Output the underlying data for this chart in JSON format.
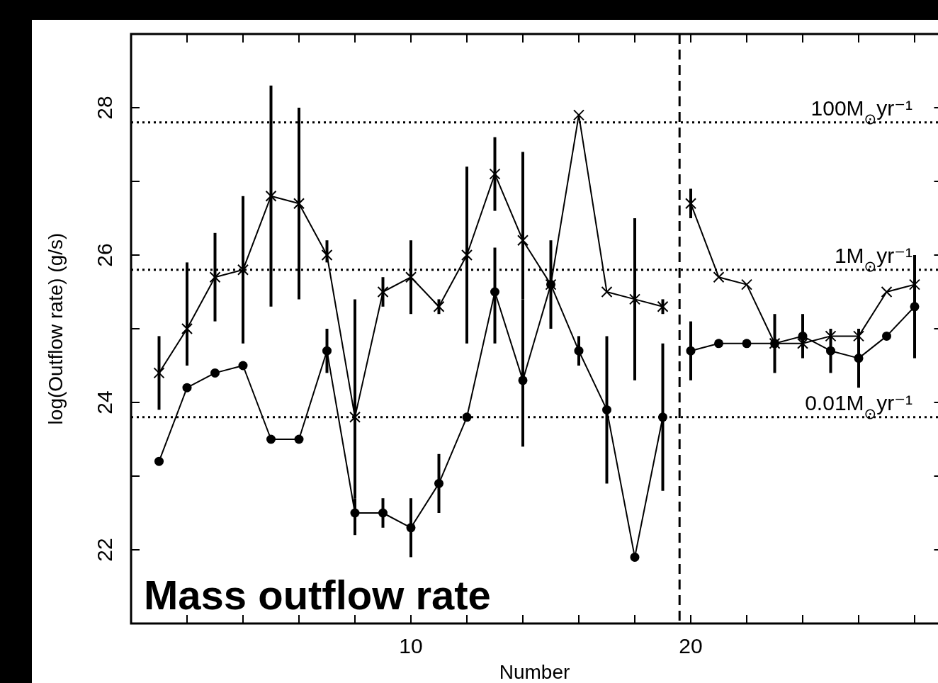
{
  "chart_data": {
    "type": "line",
    "xlabel": "Number",
    "ylabel": "log(Outflow rate) (g/s)",
    "xlim": [
      0,
      29
    ],
    "ylim": [
      21,
      29
    ],
    "xticks": [
      {
        "value": 2,
        "label": null
      },
      {
        "value": 4,
        "label": null
      },
      {
        "value": 6,
        "label": null
      },
      {
        "value": 8,
        "label": null
      },
      10,
      {
        "value": 12,
        "label": null
      },
      {
        "value": 14,
        "label": null
      },
      {
        "value": 16,
        "label": null
      },
      {
        "value": 18,
        "label": null
      },
      20,
      {
        "value": 22,
        "label": null
      },
      {
        "value": 24,
        "label": null
      },
      {
        "value": 26,
        "label": null
      },
      {
        "value": 28,
        "label": null
      }
    ],
    "yticks": [
      22,
      {
        "value": 23,
        "label": null
      },
      24,
      {
        "value": 25,
        "label": null
      },
      26,
      {
        "value": 27,
        "label": null
      },
      28
    ],
    "grid": false,
    "line_style": "solid",
    "series": [
      {
        "color": "#000000",
        "marker": "cross",
        "x": [
          1,
          2,
          3,
          4,
          5,
          6,
          7,
          8,
          9,
          10,
          11,
          12,
          13,
          14,
          15,
          16,
          17,
          18,
          19
        ],
        "values": [
          24.4,
          25.0,
          25.7,
          25.8,
          26.8,
          26.7,
          26.0,
          23.8,
          25.5,
          25.7,
          25.3,
          26.0,
          27.1,
          26.2,
          25.6,
          27.9,
          25.5,
          25.4,
          25.3
        ],
        "errors": [
          [
            23.9,
            24.9
          ],
          [
            24.5,
            25.9
          ],
          [
            25.1,
            26.3
          ],
          [
            24.8,
            26.8
          ],
          [
            25.3,
            28.3
          ],
          [
            25.4,
            28.0
          ],
          [
            25.9,
            26.2
          ],
          [
            22.7,
            25.4
          ],
          [
            25.3,
            25.7
          ],
          [
            25.2,
            26.2
          ],
          [
            25.2,
            25.4
          ],
          [
            24.8,
            27.2
          ],
          [
            26.6,
            27.6
          ],
          [
            25.4,
            27.4
          ],
          [
            25.0,
            26.2
          ],
          null,
          null,
          [
            24.3,
            26.5
          ],
          [
            25.2,
            25.4
          ]
        ]
      },
      {
        "color": "#000000",
        "marker": "cross",
        "x": [
          20,
          21,
          22,
          23,
          24,
          25,
          26,
          27,
          28
        ],
        "values": [
          26.7,
          25.7,
          25.6,
          24.8,
          24.8,
          24.9,
          24.9,
          25.5,
          25.6
        ],
        "errors": [
          [
            26.5,
            26.9
          ],
          null,
          null,
          null,
          null,
          null,
          null,
          null,
          null
        ]
      },
      {
        "color": "#000000",
        "marker": "circle",
        "x": [
          1,
          2,
          3,
          4,
          5,
          6,
          7,
          8,
          9,
          10,
          11,
          12,
          13,
          14,
          15,
          16,
          17,
          18,
          19
        ],
        "values": [
          23.2,
          24.2,
          24.4,
          24.5,
          23.5,
          23.5,
          24.7,
          22.5,
          22.5,
          22.3,
          22.9,
          23.8,
          25.5,
          24.3,
          25.6,
          24.7,
          23.9,
          21.9,
          23.8
        ],
        "errors": [
          null,
          null,
          null,
          null,
          null,
          null,
          [
            24.4,
            25.0
          ],
          [
            22.2,
            22.7
          ],
          [
            22.3,
            22.7
          ],
          [
            21.9,
            22.7
          ],
          [
            22.5,
            23.3
          ],
          null,
          [
            24.8,
            26.1
          ],
          [
            23.4,
            25.4
          ],
          null,
          [
            24.5,
            24.9
          ],
          [
            22.9,
            24.9
          ],
          null,
          [
            22.8,
            24.8
          ]
        ]
      },
      {
        "color": "#000000",
        "marker": "circle",
        "x": [
          20,
          21,
          22,
          23,
          24,
          25,
          26,
          27,
          28
        ],
        "values": [
          24.7,
          24.8,
          24.8,
          24.8,
          24.9,
          24.7,
          24.6,
          24.9,
          25.3
        ],
        "errors": [
          [
            24.3,
            25.1
          ],
          null,
          null,
          [
            24.4,
            25.2
          ],
          [
            24.6,
            25.2
          ],
          [
            24.4,
            25.0
          ],
          [
            24.2,
            25.0
          ],
          null,
          [
            24.6,
            26.0
          ]
        ]
      }
    ],
    "ref_lines": [
      {
        "axis": "y",
        "value": 27.8,
        "label": "100M$_{⊙}$yr⁻¹",
        "line_style": "dotted"
      },
      {
        "axis": "y",
        "value": 25.8,
        "label": "1M$_{⊙}$yr⁻¹",
        "line_style": "dotted"
      },
      {
        "axis": "y",
        "value": 23.8,
        "label": "0.01M$_{⊙}$yr⁻¹",
        "line_style": "dotted"
      },
      {
        "axis": "x",
        "value": 19.6,
        "label": null,
        "line_style": "dashed"
      }
    ],
    "annotations": [
      "Mass outflow rate"
    ]
  }
}
